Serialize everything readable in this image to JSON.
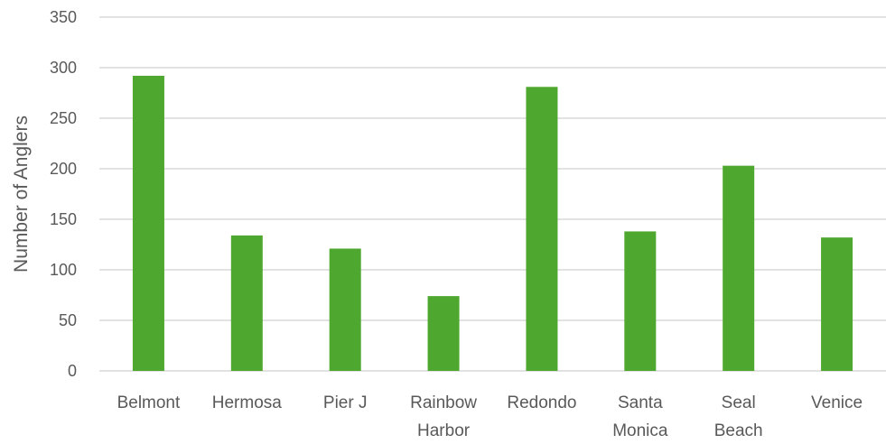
{
  "chart_data": {
    "type": "bar",
    "categories": [
      [
        "Belmont"
      ],
      [
        "Hermosa"
      ],
      [
        "Pier J"
      ],
      [
        "Rainbow",
        "Harbor"
      ],
      [
        "Redondo"
      ],
      [
        "Santa",
        "Monica"
      ],
      [
        "Seal",
        "Beach"
      ],
      [
        "Venice"
      ]
    ],
    "values": [
      292,
      134,
      121,
      74,
      281,
      138,
      203,
      132
    ],
    "ylabel": "Number of Anglers",
    "xlabel": "",
    "ylim": [
      0,
      350
    ],
    "yticks": [
      0,
      50,
      100,
      150,
      200,
      250,
      300,
      350
    ],
    "grid": true,
    "bar_color": "#4ea72e",
    "legend": "none"
  }
}
